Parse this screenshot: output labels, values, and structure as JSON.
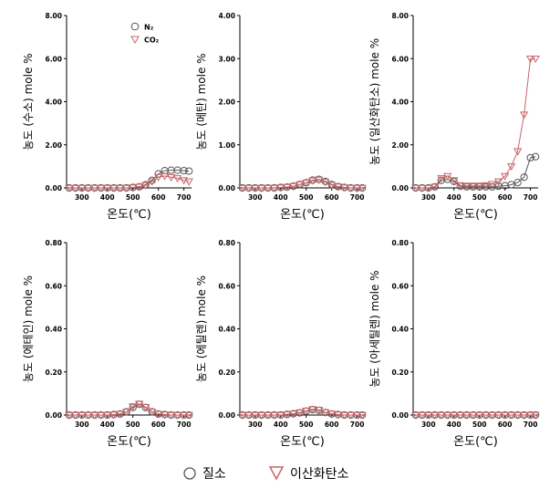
{
  "figure": {
    "colors": {
      "n2": "#555555",
      "co2": "#c9646a",
      "axis": "#000000"
    },
    "legend": [
      {
        "label": "질소",
        "marker": "circle-icon"
      },
      {
        "label": "이산화탄소",
        "marker": "triangle-down-icon"
      }
    ]
  },
  "chart_data": [
    {
      "type": "line",
      "ylabel": "농도 (수소) mole %",
      "xlabel": "온도(℃)",
      "ylim": [
        0,
        8
      ],
      "yticks": [
        "0.00",
        "2.00",
        "4.00",
        "6.00",
        "8.00"
      ],
      "xticks": [
        "300",
        "400",
        "500",
        "600",
        "700"
      ],
      "inset_legend": [
        {
          "label": "N₂",
          "series": "n2"
        },
        {
          "label": "CO₂",
          "series": "co2"
        }
      ],
      "x": [
        250,
        275,
        300,
        325,
        350,
        375,
        400,
        425,
        450,
        475,
        500,
        525,
        550,
        575,
        600,
        625,
        650,
        675,
        700,
        720
      ],
      "series": [
        {
          "key": "n2",
          "values": [
            0,
            0,
            0,
            0,
            0,
            0,
            0,
            0,
            0,
            0,
            0.02,
            0.05,
            0.15,
            0.35,
            0.65,
            0.8,
            0.82,
            0.82,
            0.8,
            0.78
          ]
        },
        {
          "key": "co2",
          "values": [
            0,
            0,
            0,
            0,
            0,
            0,
            0,
            0,
            0,
            0,
            0.02,
            0.05,
            0.12,
            0.3,
            0.5,
            0.55,
            0.5,
            0.45,
            0.35,
            0.3
          ]
        }
      ]
    },
    {
      "type": "line",
      "ylabel": "농도 (메탄) mole %",
      "xlabel": "온도(℃)",
      "ylim": [
        0,
        4
      ],
      "yticks": [
        "0.00",
        "1.00",
        "2.00",
        "3.00",
        "4.00"
      ],
      "xticks": [
        "300",
        "400",
        "500",
        "600",
        "700"
      ],
      "x": [
        250,
        275,
        300,
        325,
        350,
        375,
        400,
        425,
        450,
        475,
        500,
        525,
        550,
        575,
        600,
        625,
        650,
        675,
        700,
        720
      ],
      "series": [
        {
          "key": "n2",
          "values": [
            0,
            0,
            0,
            0,
            0,
            0,
            0.01,
            0.02,
            0.04,
            0.08,
            0.12,
            0.18,
            0.2,
            0.15,
            0.08,
            0.03,
            0.01,
            0,
            0,
            0
          ]
        },
        {
          "key": "co2",
          "values": [
            0,
            0,
            0,
            0,
            0,
            0,
            0.01,
            0.02,
            0.04,
            0.08,
            0.12,
            0.17,
            0.19,
            0.14,
            0.07,
            0.03,
            0.01,
            0,
            0,
            0
          ]
        }
      ]
    },
    {
      "type": "line",
      "ylabel": "농도 (일산화탄소) mole %",
      "xlabel": "온도(℃)",
      "ylim": [
        0,
        8
      ],
      "yticks": [
        "0.00",
        "2.00",
        "4.00",
        "6.00",
        "8.00"
      ],
      "xticks": [
        "300",
        "400",
        "500",
        "600",
        "700"
      ],
      "x": [
        250,
        275,
        300,
        325,
        350,
        375,
        400,
        425,
        450,
        475,
        500,
        525,
        550,
        575,
        600,
        625,
        650,
        675,
        700,
        720
      ],
      "series": [
        {
          "key": "n2",
          "values": [
            0,
            0,
            0,
            0.05,
            0.35,
            0.4,
            0.3,
            0.08,
            0.05,
            0.05,
            0.05,
            0.05,
            0.05,
            0.08,
            0.1,
            0.15,
            0.25,
            0.5,
            1.4,
            1.45
          ]
        },
        {
          "key": "co2",
          "values": [
            0,
            0,
            0,
            0.05,
            0.45,
            0.55,
            0.35,
            0.12,
            0.1,
            0.1,
            0.1,
            0.12,
            0.18,
            0.3,
            0.55,
            1.0,
            1.7,
            3.4,
            6.0,
            6.0
          ]
        }
      ]
    },
    {
      "type": "line",
      "ylabel": "농도 (에테인) mole %",
      "xlabel": "온도(℃)",
      "ylim": [
        0,
        0.8
      ],
      "yticks": [
        "0.00",
        "0.20",
        "0.40",
        "0.60",
        "0.80"
      ],
      "xticks": [
        "300",
        "400",
        "500",
        "600",
        "700"
      ],
      "x": [
        250,
        275,
        300,
        325,
        350,
        375,
        400,
        425,
        450,
        475,
        500,
        525,
        550,
        575,
        600,
        625,
        650,
        675,
        700,
        720
      ],
      "series": [
        {
          "key": "n2",
          "values": [
            0,
            0,
            0,
            0,
            0,
            0,
            0,
            0.002,
            0.005,
            0.015,
            0.035,
            0.05,
            0.035,
            0.015,
            0.005,
            0.002,
            0,
            0,
            0,
            0
          ]
        },
        {
          "key": "co2",
          "values": [
            0,
            0,
            0,
            0,
            0,
            0,
            0,
            0.002,
            0.005,
            0.015,
            0.04,
            0.052,
            0.037,
            0.015,
            0.005,
            0.002,
            0,
            0,
            0,
            0
          ]
        }
      ]
    },
    {
      "type": "line",
      "ylabel": "농도 (에틸렌) mole %",
      "xlabel": "온도(℃)",
      "ylim": [
        0,
        0.8
      ],
      "yticks": [
        "0.00",
        "0.20",
        "0.40",
        "0.60",
        "0.80"
      ],
      "xticks": [
        "300",
        "400",
        "500",
        "600",
        "700"
      ],
      "x": [
        250,
        275,
        300,
        325,
        350,
        375,
        400,
        425,
        450,
        475,
        500,
        525,
        550,
        575,
        600,
        625,
        650,
        675,
        700,
        720
      ],
      "series": [
        {
          "key": "n2",
          "values": [
            0,
            0,
            0,
            0,
            0,
            0,
            0,
            0.003,
            0.006,
            0.01,
            0.018,
            0.025,
            0.022,
            0.012,
            0.005,
            0.002,
            0,
            0,
            0,
            0
          ]
        },
        {
          "key": "co2",
          "values": [
            0,
            0,
            0,
            0,
            0,
            0,
            0,
            0.003,
            0.006,
            0.012,
            0.02,
            0.027,
            0.024,
            0.013,
            0.006,
            0.002,
            0,
            0,
            0,
            0
          ]
        }
      ]
    },
    {
      "type": "line",
      "ylabel": "농도 (아세틸렌) mole %",
      "xlabel": "온도(℃)",
      "ylim": [
        0,
        0.8
      ],
      "yticks": [
        "0.00",
        "0.20",
        "0.40",
        "0.60",
        "0.80"
      ],
      "xticks": [
        "300",
        "400",
        "500",
        "600",
        "700"
      ],
      "x": [
        250,
        275,
        300,
        325,
        350,
        375,
        400,
        425,
        450,
        475,
        500,
        525,
        550,
        575,
        600,
        625,
        650,
        675,
        700,
        720
      ],
      "series": [
        {
          "key": "n2",
          "values": [
            0,
            0,
            0,
            0,
            0,
            0,
            0,
            0,
            0,
            0,
            0,
            0,
            0,
            0,
            0,
            0,
            0,
            0,
            0,
            0
          ]
        },
        {
          "key": "co2",
          "values": [
            0,
            0,
            0,
            0,
            0,
            0,
            0,
            0,
            0,
            0,
            0,
            0,
            0,
            0,
            0,
            0,
            0,
            0,
            0,
            0
          ]
        }
      ]
    }
  ]
}
